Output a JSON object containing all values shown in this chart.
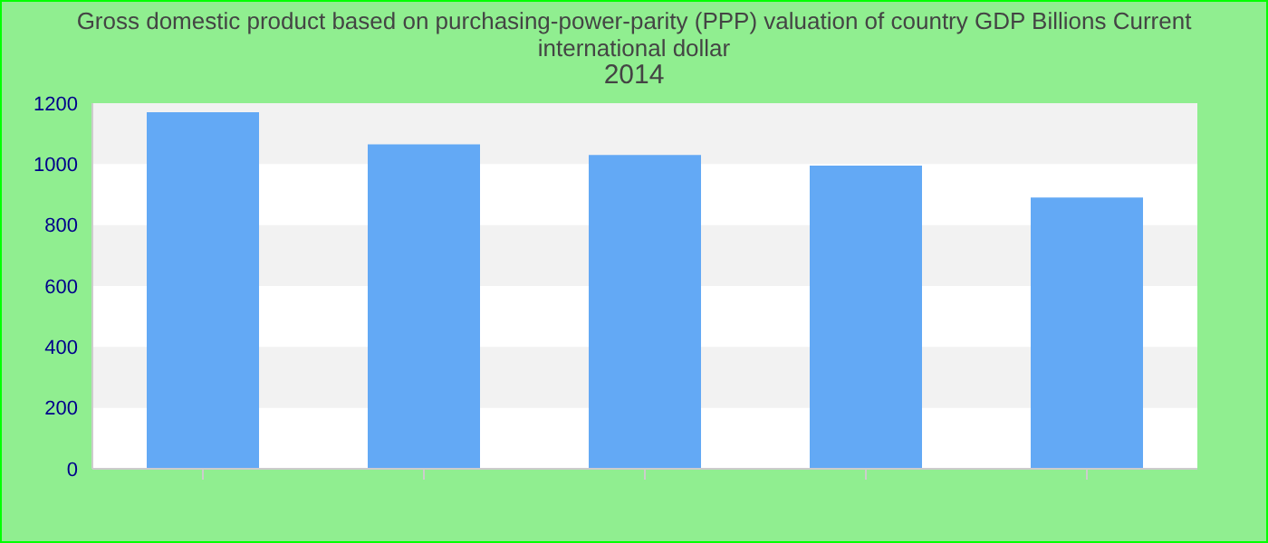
{
  "chart_data": {
    "type": "bar",
    "title": "Gross domestic product based on purchasing-power-parity (PPP) valuation of country GDP Billions Current international dollar",
    "subtitle": "2014",
    "categories": [
      null,
      null,
      null,
      null,
      null
    ],
    "values": [
      1170,
      1065,
      1030,
      995,
      890
    ],
    "color": "#63a9f5",
    "ylim": [
      0,
      1200
    ],
    "yticks": [
      0,
      200,
      400,
      600,
      800,
      1000,
      1200
    ],
    "bands": [
      {
        "axis": "y",
        "from": 200,
        "to": 400,
        "color": "#f2f2f2"
      },
      {
        "axis": "y",
        "from": 600,
        "to": 800,
        "color": "#f2f2f2"
      },
      {
        "axis": "y",
        "from": 1000,
        "to": 1200,
        "color": "#f2f2f2"
      }
    ]
  }
}
